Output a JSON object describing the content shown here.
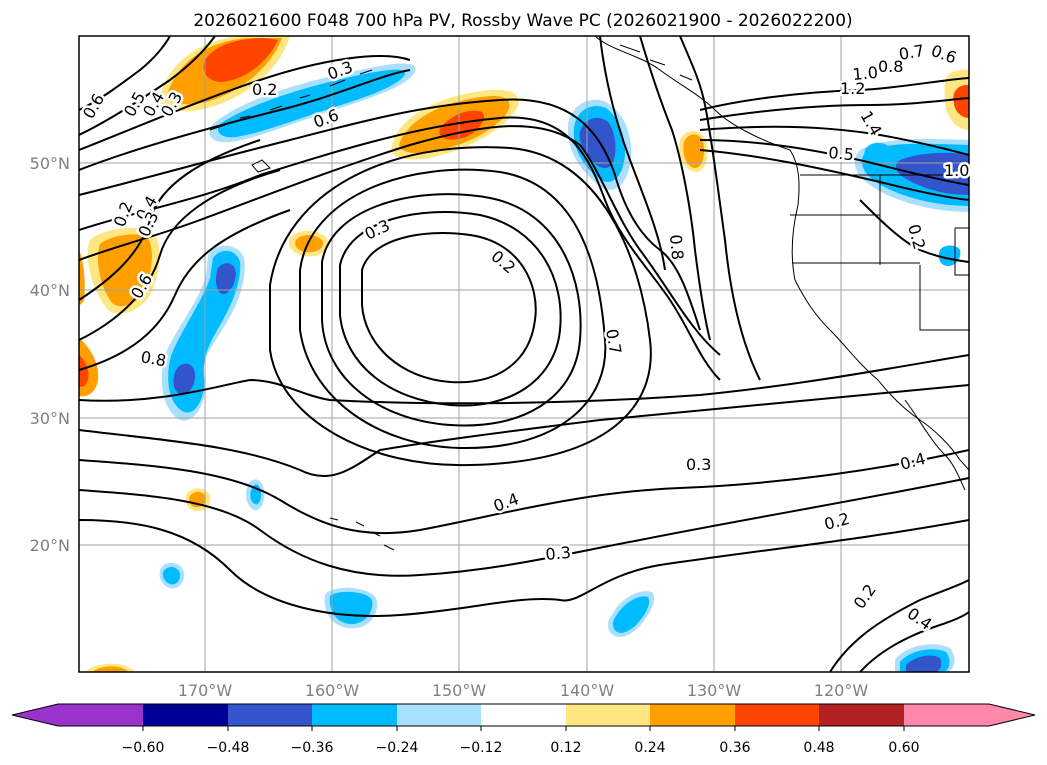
{
  "title": "2026021600 F048 700 hPa PV, Rossby Wave PC (2026021900 - 2026022200)",
  "map": {
    "lat_labels": [
      "50°N",
      "40°N",
      "30°N",
      "20°N"
    ],
    "lon_labels": [
      "170°W",
      "160°W",
      "150°W",
      "140°W",
      "130°W",
      "120°W"
    ]
  },
  "contour_labels": [
    "0.6",
    "0.5",
    "0.4",
    "0.3",
    "0.2",
    "0.3",
    "0.6",
    "0.7",
    "0.6",
    "1.0",
    "0.8",
    "1.2",
    "1.4",
    "0.5",
    "1.0",
    "0.2",
    "0.4",
    "0.3",
    "0.2",
    "0.8",
    "0.6",
    "0.7",
    "0.3",
    "0.4",
    "0.3",
    "0.2",
    "0.4",
    "0.2",
    "0.3",
    "0.8",
    "0.2",
    "0.4"
  ],
  "colorbar": {
    "ticks": [
      "−0.60",
      "−0.48",
      "−0.36",
      "−0.24",
      "−0.12",
      "0.12",
      "0.24",
      "0.36",
      "0.48",
      "0.60"
    ],
    "colors": {
      "under": "#9933cc",
      "bins": [
        "#000099",
        "#3355cc",
        "#00bbff",
        "#aae0ff",
        "#ffffff",
        "#ffe680",
        "#ffa000",
        "#ff4400",
        "#b22222"
      ],
      "over": "#ff88aa"
    }
  },
  "palette": {
    "purple": "#9933cc",
    "navy": "#000099",
    "mid_blue": "#3355cc",
    "cyan": "#00bbff",
    "light_blue": "#aae0ff",
    "yellow": "#ffe680",
    "orange": "#ffa000",
    "red_orange": "#ff4400",
    "dark_red": "#b22222",
    "pink": "#ff88aa",
    "gridline": "#a0a0a0"
  }
}
